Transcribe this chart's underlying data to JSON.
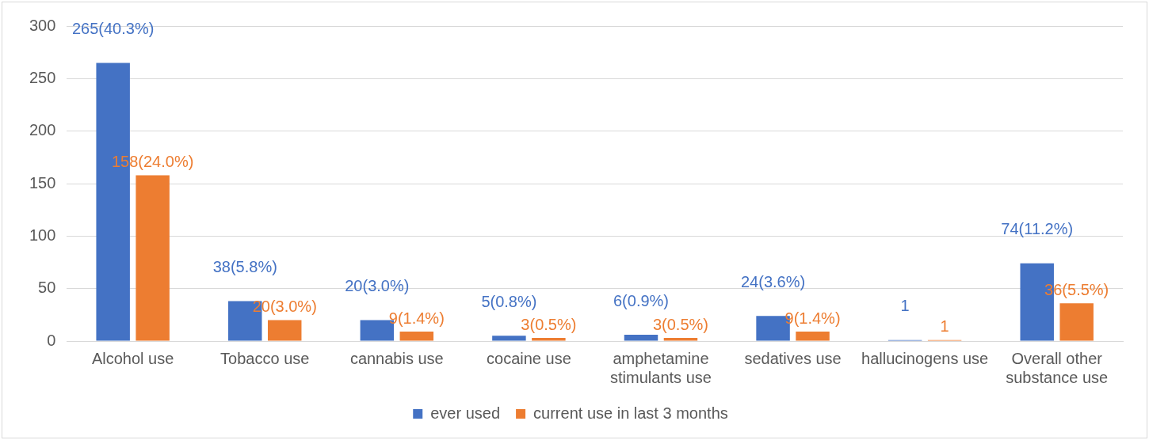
{
  "chart_data": {
    "type": "bar",
    "categories": [
      "Alcohol use",
      "Tobacco use",
      "cannabis use",
      "cocaine use",
      "amphetamine stimulants use",
      "sedatives use",
      "hallucinogens use",
      "Overall other substance use"
    ],
    "series": [
      {
        "name": "ever used",
        "color": "#4472c4",
        "values": [
          265,
          38,
          20,
          5,
          6,
          24,
          1,
          74
        ],
        "value_labels": [
          "265(40.3%)",
          "38(5.8%)",
          "20(3.0%)",
          "5(0.8%)",
          "6(0.9%)",
          "24(3.6%)",
          "1",
          "74(11.2%)"
        ]
      },
      {
        "name": "current use in last 3 months",
        "color": "#ed7d31",
        "values": [
          158,
          20,
          9,
          3,
          3,
          9,
          1,
          36
        ],
        "value_labels": [
          "158(24.0%)",
          "20(3.0%)",
          "9(1.4%)",
          "3(0.5%)",
          "3(0.5%)",
          "9(1.4%)",
          "1",
          "36(5.5%)"
        ]
      }
    ],
    "ylim": [
      0,
      300
    ],
    "yticks": [
      0,
      50,
      100,
      150,
      200,
      250,
      300
    ],
    "grid": "y",
    "legend": "bottom"
  }
}
